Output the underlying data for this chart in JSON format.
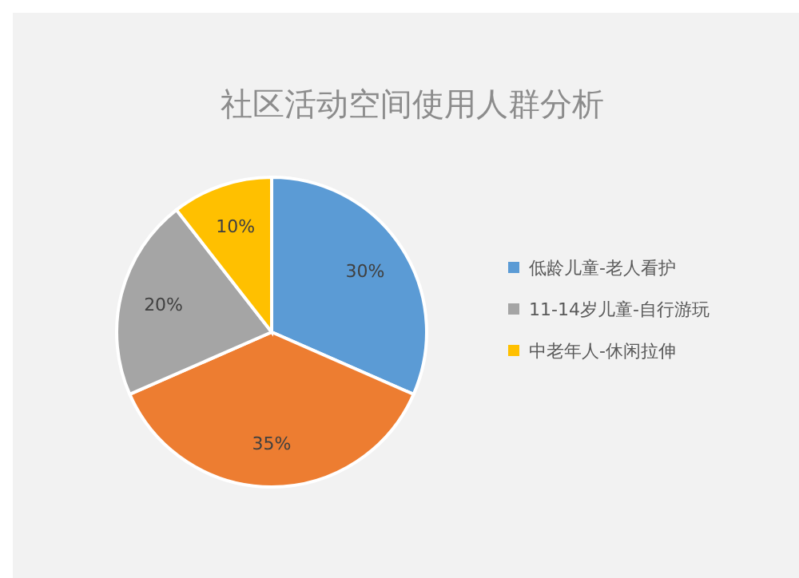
{
  "chart_data": {
    "type": "pie",
    "title": "社区活动空间使用人群分析",
    "categories": [
      "低龄儿童-老人看护",
      null,
      "11-14岁儿童-自行游玩",
      "中老年人-休闲拉伸"
    ],
    "values": [
      30,
      35,
      20,
      10
    ],
    "colors": [
      "#5b9bd5",
      "#ed7d31",
      "#a5a5a5",
      "#ffc000"
    ],
    "value_labels": [
      "30%",
      "35%",
      "20%",
      "10%"
    ],
    "legend": "right"
  }
}
